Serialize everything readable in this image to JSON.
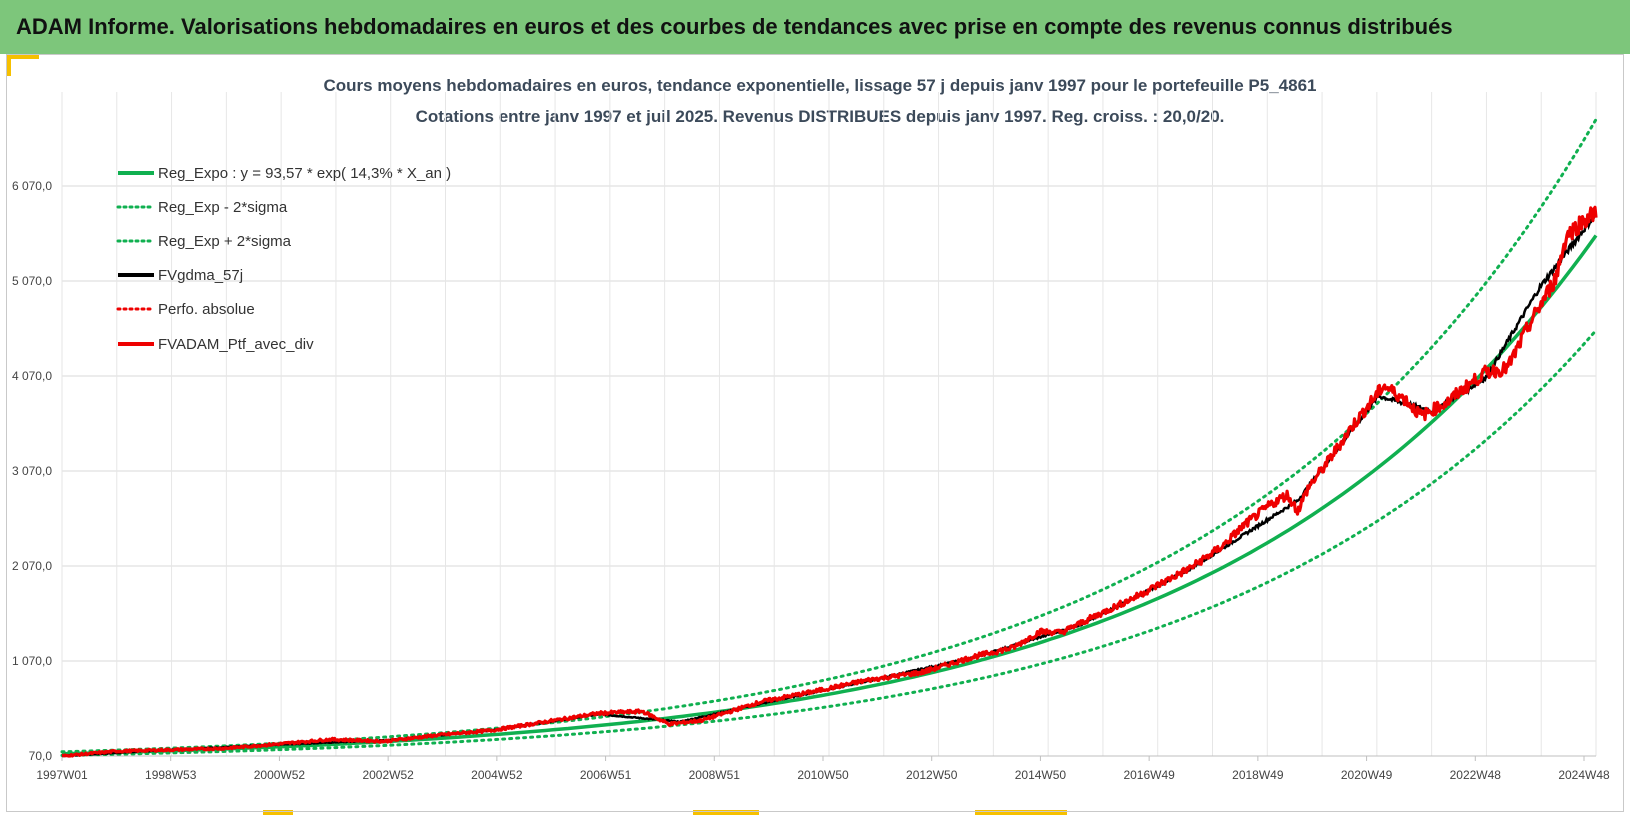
{
  "header": {
    "title": "ADAM Informe. Valorisations hebdomadaires en euros et des courbes de tendances avec prise en compte des revenus connus distribués"
  },
  "colors": {
    "header_bg": "#7dc67b",
    "accent": "#f6c000",
    "trend": "#10b050",
    "gdma": "#000000",
    "portfolio": "#ee0000"
  },
  "chart_data": {
    "type": "line",
    "title": "Cours moyens hebdomadaires  en euros, tendance exponentielle, lissage 57 j depuis janv 1997 pour le portefeuille P5_4861",
    "subtitle": "Cotations  entre janv 1997 et juil 2025. Revenus DISTRIBUES depuis janv 1997. Reg. croiss. : 20,0/20.",
    "xlabel": "",
    "ylabel": "",
    "x_ticks": [
      "1997W01",
      "1998W53",
      "2000W52",
      "2002W52",
      "2004W52",
      "2006W51",
      "2008W51",
      "2010W50",
      "2012W50",
      "2014W50",
      "2016W49",
      "2018W49",
      "2020W49",
      "2022W48",
      "2024W48"
    ],
    "x_range_years": [
      1997.0,
      2025.55
    ],
    "y_ticks": [
      "70,0",
      "1 070,0",
      "2 070,0",
      "3 070,0",
      "4 070,0",
      "5 070,0",
      "6 070,0"
    ],
    "ylim": [
      70,
      6070
    ],
    "grid": true,
    "legend_position": "top-left",
    "trend_formula": {
      "a": 93.57,
      "rate": 0.143
    },
    "series": [
      {
        "name": "Reg_Expo : y = 93,57 * exp( 14,3% *  X_an )",
        "style": "solid",
        "color": "#10b050"
      },
      {
        "name": "Reg_Exp - 2*sigma",
        "style": "dotted",
        "color": "#10b050"
      },
      {
        "name": "Reg_Exp + 2*sigma",
        "style": "dotted",
        "color": "#10b050"
      },
      {
        "name": "FVgdma_57j",
        "style": "solid",
        "color": "#000000"
      },
      {
        "name": "Perfo. absolue",
        "style": "dotted",
        "color": "#ee0000"
      },
      {
        "name": "FVADAM_Ptf_avec_div",
        "style": "solid",
        "color": "#ee0000"
      }
    ],
    "portfolio_points": {
      "x": [
        1997.0,
        1998.0,
        1999.0,
        2000.0,
        2001.0,
        2002.0,
        2003.0,
        2004.0,
        2005.0,
        2006.0,
        2007.0,
        2007.8,
        2008.3,
        2008.9,
        2009.5,
        2010.0,
        2011.0,
        2012.0,
        2013.0,
        2014.0,
        2014.7,
        2015.2,
        2015.6,
        2016.0,
        2017.0,
        2018.0,
        2018.6,
        2019.0,
        2019.5,
        2019.8,
        2020.0,
        2020.2,
        2020.5,
        2021.0,
        2021.6,
        2022.0,
        2022.3,
        2022.8,
        2023.0,
        2023.5,
        2023.9,
        2024.3,
        2024.8,
        2025.0,
        2025.3,
        2025.55
      ],
      "y": [
        70,
        120,
        135,
        150,
        195,
        245,
        225,
        290,
        340,
        430,
        520,
        540,
        405,
        445,
        550,
        640,
        750,
        870,
        950,
        1120,
        1210,
        1380,
        1370,
        1480,
        1750,
        2050,
        2280,
        2500,
        2720,
        2820,
        2650,
        2900,
        3120,
        3530,
        3970,
        3820,
        3650,
        3800,
        3900,
        4110,
        4150,
        4600,
        5100,
        5550,
        5700,
        5790
      ]
    },
    "gdma_points": {
      "x": [
        1997.0,
        1999.0,
        2001.0,
        2003.0,
        2005.0,
        2007.0,
        2008.5,
        2010.0,
        2012.0,
        2014.0,
        2016.0,
        2018.0,
        2020.0,
        2021.5,
        2022.5,
        2023.5,
        2024.5,
        2025.55
      ],
      "y": [
        70,
        135,
        190,
        235,
        340,
        510,
        430,
        620,
        860,
        1110,
        1460,
        2040,
        2760,
        3860,
        3700,
        4050,
        5000,
        5780
      ]
    }
  }
}
